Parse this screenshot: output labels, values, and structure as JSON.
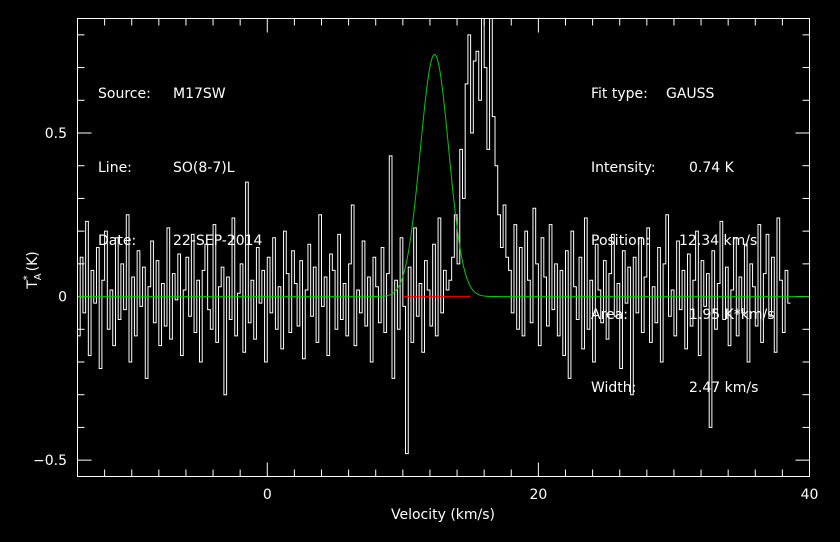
{
  "info_left": {
    "source_label": "Source:",
    "source_value": "M17SW",
    "line_label": "Line:",
    "line_value": "SO(8-7)L",
    "date_label": "Date:",
    "date_value": "22-SEP-2014"
  },
  "info_right": {
    "fit_label": "Fit type:",
    "fit_value": "GAUSS",
    "intensity_label": "Intensity:",
    "intensity_value": "0.74 K",
    "position_label": "Position:",
    "position_value": "12.34 km/s",
    "area_label": "Area:",
    "area_value": "1.95 K*km/s",
    "width_label": "Width:",
    "width_value": "2.47 km/s"
  },
  "colors": {
    "spectrum": "#ffffff",
    "fit": "#00cc00",
    "baseline": "#ff0000",
    "axes": "#ffffff",
    "background": "#000000"
  },
  "chart_data": {
    "type": "line",
    "xlabel": "Velocity (km/s)",
    "ylabel": "T_A^* (K)",
    "xlim": [
      -14,
      40
    ],
    "ylim": [
      -0.55,
      0.85
    ],
    "xticks": [
      0,
      20,
      40
    ],
    "xtick_labels": [
      "0",
      "20",
      "40"
    ],
    "yticks": [
      -0.5,
      0,
      0.5
    ],
    "ytick_labels": [
      "−0.5",
      "0",
      "0.5"
    ],
    "baseline": {
      "y": 0,
      "x_range": [
        10,
        15
      ]
    },
    "fit": {
      "type": "gaussian",
      "amplitude": 0.74,
      "center": 12.34,
      "fwhm": 2.47
    },
    "series": [
      {
        "style": "histogram",
        "x_start": -14,
        "x_step": 0.2,
        "values": [
          -0.12,
          0.12,
          -0.05,
          0.23,
          -0.18,
          0.08,
          -0.02,
          0.15,
          -0.22,
          0.05,
          0.2,
          -0.1,
          0.02,
          -0.15,
          0.18,
          -0.07,
          0.1,
          -0.04,
          0.25,
          -0.2,
          0.06,
          -0.12,
          0.14,
          -0.03,
          0.09,
          -0.25,
          0.03,
          0.17,
          -0.08,
          0.11,
          -0.15,
          0.04,
          -0.09,
          0.21,
          -0.13,
          0.07,
          -0.01,
          0.13,
          -0.18,
          0.02,
          0.12,
          -0.06,
          0.19,
          -0.11,
          0.05,
          -0.2,
          0.08,
          0.16,
          -0.04,
          -0.1,
          0.22,
          -0.14,
          0.03,
          0.09,
          -0.3,
          0.06,
          -0.07,
          0.24,
          -0.12,
          0.01,
          0.1,
          -0.17,
          0.35,
          -0.08,
          0.05,
          -0.13,
          0.15,
          -0.02,
          0.08,
          -0.2,
          0.12,
          -0.05,
          0.18,
          -0.1,
          0.03,
          -0.16,
          0.2,
          0.07,
          -0.11,
          0.14,
          0.04,
          -0.09,
          0.11,
          -0.19,
          0.02,
          0.16,
          -0.06,
          0.09,
          -0.14,
          0.25,
          -0.03,
          0.06,
          -0.18,
          0.13,
          0.08,
          -0.1,
          0.19,
          -0.07,
          0.04,
          -0.12,
          0.1,
          0.28,
          -0.15,
          0.02,
          -0.05,
          0.17,
          -0.09,
          0.06,
          -0.2,
          0.12,
          0.03,
          -0.08,
          0.15,
          -0.11,
          0.07,
          0.43,
          -0.25,
          0.05,
          -0.1,
          0.18,
          -0.03,
          -0.48,
          0.09,
          -0.14,
          0.21,
          -0.06,
          0.04,
          -0.17,
          0.11,
          0.02,
          -0.09,
          0.16,
          -0.12,
          0.24,
          -0.05,
          0.08,
          0.02,
          0.05,
          0.12,
          0.25,
          0.1,
          0.45,
          0.3,
          0.65,
          0.8,
          0.5,
          0.72,
          0.75,
          0.6,
          0.85,
          0.7,
          0.45,
          0.85,
          0.55,
          0.4,
          0.25,
          0.15,
          0.28,
          0.12,
          0.08,
          -0.05,
          0.22,
          -0.1,
          0.15,
          -0.12,
          0.2,
          0.05,
          -0.08,
          0.27,
          0.1,
          -0.15,
          0.18,
          0.06,
          -0.09,
          0.22,
          -0.04,
          0.1,
          -0.12,
          0.08,
          -0.18,
          0.14,
          -0.25,
          0.2,
          0.03,
          -0.07,
          0.12,
          -0.16,
          0.24,
          -0.1,
          0.05,
          -0.2,
          0.16,
          0.02,
          -0.08,
          0.11,
          -0.13,
          0.07,
          0.19,
          -0.06,
          0.04,
          -0.22,
          0.14,
          -0.02,
          0.09,
          -0.3,
          0.12,
          -0.05,
          0.18,
          -0.11,
          0.06,
          0.21,
          -0.14,
          0.03,
          -0.08,
          0.15,
          -0.2,
          0.1,
          0.25,
          -0.06,
          0.02,
          -0.12,
          0.17,
          -0.04,
          0.08,
          -0.16,
          0.13,
          -0.09,
          0.05,
          0.2,
          -0.18,
          0.11,
          -0.03,
          0.07,
          -0.4,
          0.14,
          -0.1,
          0.04,
          0.23,
          -0.07,
          0.09,
          -0.15,
          0.02,
          0.18,
          -0.12,
          0.06,
          -0.05,
          0.16,
          -0.2,
          0.1,
          0.03,
          -0.09,
          0.22,
          -0.14,
          0.07,
          0.19,
          -0.06,
          0.12,
          -0.17,
          0.24,
          0.05,
          -0.11,
          0.08,
          -0.02
        ]
      }
    ]
  }
}
